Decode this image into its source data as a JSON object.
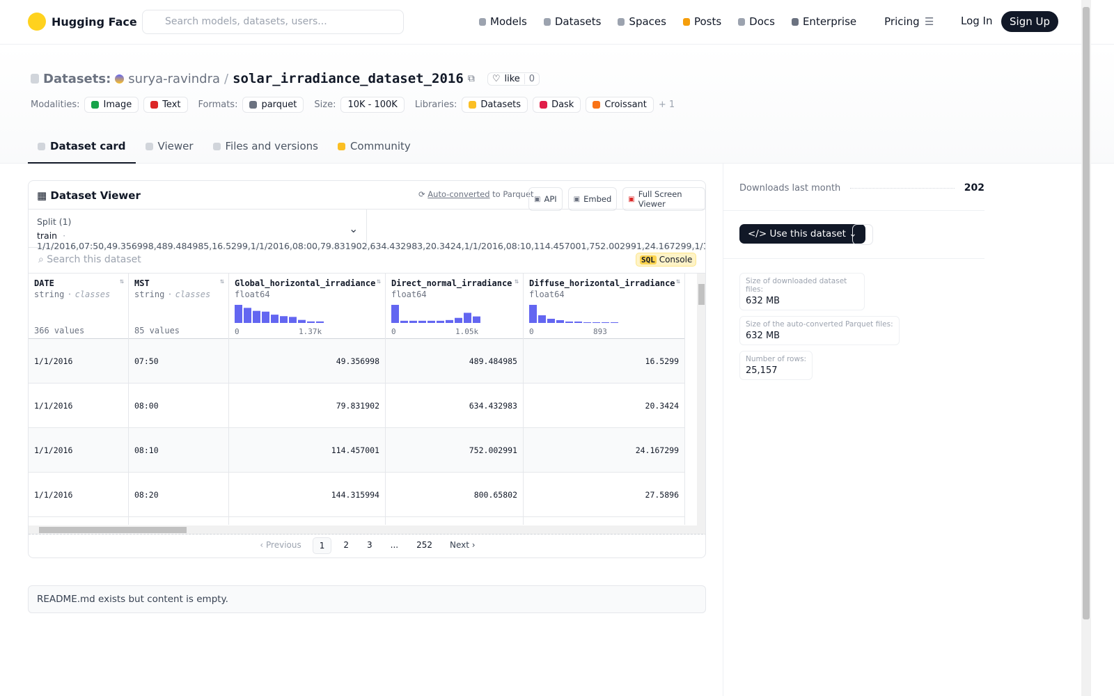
{
  "nav": {
    "brand": "Hugging Face",
    "search_placeholder": "Search models, datasets, users...",
    "links": [
      "Models",
      "Datasets",
      "Spaces",
      "Posts",
      "Docs",
      "Enterprise",
      "Pricing"
    ],
    "login": "Log In",
    "signup": "Sign Up"
  },
  "header": {
    "section": "Datasets:",
    "owner": "surya-ravindra",
    "separator": "/",
    "name": "solar_irradiance_dataset_2016",
    "like": "like",
    "likes": 0,
    "tag_groups": [
      {
        "label": "Modalities:",
        "tags": [
          "Image",
          "Text"
        ]
      },
      {
        "label": "Formats:",
        "tags": [
          "parquet"
        ]
      },
      {
        "label": "Size:",
        "tags": [
          "10K - 100K"
        ]
      },
      {
        "label": "Libraries:",
        "tags": [
          "Datasets",
          "Dask",
          "Croissant"
        ]
      }
    ],
    "more": "+ 1"
  },
  "tabs": [
    "Dataset card",
    "Viewer",
    "Files and versions",
    "Community"
  ],
  "viewer": {
    "title": "Dataset Viewer",
    "auto_converted": "Auto-converted",
    "to_parquet": "to Parquet",
    "buttons": [
      "API",
      "Embed",
      "Full Screen Viewer"
    ],
    "split_label": "Split (1)",
    "split": "train",
    "dot": "·",
    "rows": [
      [
        "1/1/2016",
        "07:50",
        "49.356998",
        "489.484985",
        "16.5299"
      ],
      [
        "1/1/2016",
        "08:00",
        "79.831902",
        "634.432983",
        "20.3424"
      ],
      [
        "1/1/2016",
        "08:10",
        "114.457001",
        "752.002991",
        "24.167299"
      ],
      [
        "1/1/2016",
        "08:20",
        "144.315994",
        "800.65802",
        "27.5896"
      ]
    ],
    "search_placeholder": "Search this dataset",
    "sql": "SQL",
    "console": "Console",
    "columns": [
      {
        "name": "DATE",
        "type": "string",
        "kind": "classes",
        "summary": "366 values"
      },
      {
        "name": "MST",
        "type": "string",
        "kind": "classes",
        "summary": "85 values"
      },
      {
        "name": "Global_horizontal_irradiance",
        "type": "float64",
        "hist": [
          24,
          20,
          16,
          15,
          11,
          9,
          8,
          4,
          2,
          2
        ],
        "min": "0",
        "max": "1.37k"
      },
      {
        "name": "Direct_normal_irradiance",
        "type": "float64",
        "hist": [
          25,
          3,
          3,
          3,
          3,
          3,
          4,
          7,
          14,
          9
        ],
        "min": "0",
        "max": "1.05k"
      },
      {
        "name": "Diffuse_horizontal_irradiance",
        "type": "float64",
        "hist": [
          26,
          11,
          6,
          4,
          2,
          2,
          1,
          1,
          1,
          1
        ],
        "min": "0",
        "max": "893"
      }
    ],
    "pagination": {
      "previous": "Previous",
      "pages": [
        "1",
        "2",
        "3",
        "...",
        "252"
      ],
      "next": "Next"
    }
  },
  "readme": "README.md exists but content is empty.",
  "sidebar": {
    "downloads_label": "Downloads last month",
    "downloads": 202,
    "use_button": "Use this dataset",
    "stats": [
      {
        "label": "Size of downloaded dataset files:",
        "value": "632 MB"
      },
      {
        "label": "Size of the auto-converted Parquet files:",
        "value": "632 MB"
      },
      {
        "label": "Number of rows:",
        "value": "25,157"
      }
    ]
  }
}
